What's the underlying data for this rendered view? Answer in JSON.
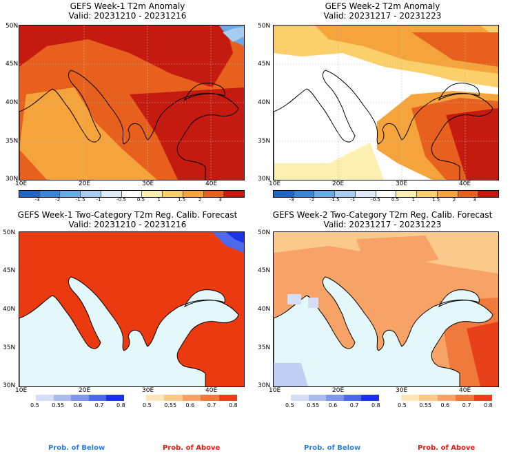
{
  "panels": {
    "p1": {
      "title": "GEFS Week-1 T2m Anomaly",
      "valid": "Valid: 20231210 - 20231216"
    },
    "p2": {
      "title": "GEFS Week-2 T2m Anomaly",
      "valid": "Valid: 20231217 - 20231223"
    },
    "p3": {
      "title": "GEFS Week-1 Two-Category T2m Reg. Calib. Forecast",
      "valid": "Valid: 20231210 - 20231216"
    },
    "p4": {
      "title": "GEFS Week-2 Two-Category T2m Reg. Calib. Forecast",
      "valid": "Valid: 20231217 - 20231223"
    }
  },
  "axes": {
    "lat": [
      "50N",
      "45N",
      "40N",
      "35N",
      "30N"
    ],
    "lon": [
      "10E",
      "20E",
      "30E",
      "40E"
    ]
  },
  "anomaly_scale": {
    "ticks": [
      "-3",
      "-2",
      "-1.5",
      "-1",
      "-0.5",
      "0.5",
      "1",
      "1.5",
      "2",
      "3"
    ],
    "colors": [
      "#2166c4",
      "#3a85d8",
      "#6aa9e6",
      "#a6cdf0",
      "#dcecf8",
      "#ffffff",
      "#fbf0b0",
      "#fbcf6a",
      "#f5a33b",
      "#e8601e",
      "#c41a10"
    ]
  },
  "prob_below": {
    "ticks": [
      "0.5",
      "0.55",
      "0.6",
      "0.7",
      "0.8"
    ],
    "colors": [
      "#d6def7",
      "#a9bbef",
      "#7f97eb",
      "#4d68ea",
      "#1c32e8"
    ],
    "label": "Prob. of Below"
  },
  "prob_above": {
    "ticks": [
      "0.5",
      "0.55",
      "0.6",
      "0.7",
      "0.8"
    ],
    "colors": [
      "#fde6b8",
      "#fbc98c",
      "#f7a367",
      "#f07a3c",
      "#e8401a"
    ],
    "label": "Prob. of Above"
  },
  "colors": {
    "sea": "#e4f7fa",
    "red_land": "#ec3a10",
    "border": "#000000"
  }
}
